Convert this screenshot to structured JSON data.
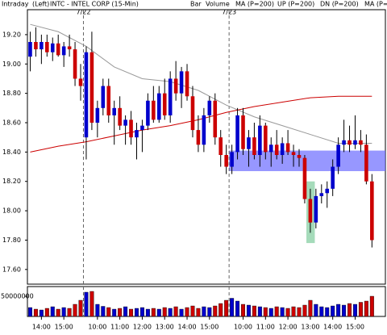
{
  "chart_data": {
    "type": "candlestick",
    "header": [
      {
        "text": "Intraday",
        "color": "#000000"
      },
      {
        "text": "(Left)",
        "color": "#000000"
      },
      {
        "text": "INTC - INTEL CORP (15-Min)",
        "color": "#000000"
      },
      {
        "text": "Bar",
        "color": "#000000"
      },
      {
        "text": "Volume",
        "color": "#00aa00"
      },
      {
        "text": "MA (P=200)",
        "color": "#cc0000"
      },
      {
        "text": "UP (P=200)",
        "color": "#00aa00"
      },
      {
        "text": "DN (P=200)",
        "color": "#0000cc"
      },
      {
        "text": "MA (P=5",
        "color": "#999999"
      }
    ],
    "x": [
      0,
      1,
      2,
      3,
      4,
      5,
      6,
      7,
      8,
      9,
      10,
      11,
      12,
      13,
      14,
      15,
      16,
      17,
      18,
      19,
      20,
      21,
      22,
      23,
      24,
      25,
      26,
      27,
      28,
      29,
      30,
      31,
      32,
      33,
      34,
      35,
      36,
      37,
      38,
      39,
      40,
      41,
      42,
      43,
      44,
      45,
      46,
      47,
      48,
      49,
      50,
      51,
      52,
      53,
      54,
      55,
      56,
      57,
      58,
      59,
      60,
      61
    ],
    "open": [
      19.05,
      19.15,
      19.1,
      19.15,
      19.08,
      19.14,
      19.06,
      19.12,
      19.1,
      18.9,
      18.5,
      19.08,
      18.6,
      18.7,
      18.85,
      18.65,
      18.7,
      18.58,
      18.62,
      18.5,
      18.55,
      18.58,
      18.75,
      18.62,
      18.8,
      18.65,
      18.9,
      18.8,
      18.95,
      18.78,
      18.55,
      18.45,
      18.65,
      18.75,
      18.5,
      18.38,
      18.3,
      18.4,
      18.65,
      18.42,
      18.5,
      18.38,
      18.58,
      18.4,
      18.45,
      18.38,
      18.46,
      18.4,
      18.38,
      18.36,
      18.08,
      17.92,
      18.1,
      18.12,
      18.15,
      18.3,
      18.45,
      18.48,
      18.45,
      18.48,
      18.45,
      18.2
    ],
    "high": [
      19.22,
      19.25,
      19.2,
      19.2,
      19.18,
      19.2,
      19.15,
      19.2,
      19.15,
      19.0,
      19.12,
      19.22,
      18.75,
      18.9,
      18.9,
      18.75,
      18.78,
      18.65,
      18.68,
      18.6,
      18.62,
      18.8,
      18.85,
      18.85,
      18.9,
      18.95,
      19.02,
      18.98,
      19.0,
      18.85,
      18.65,
      18.7,
      18.78,
      18.8,
      18.55,
      18.45,
      18.45,
      18.7,
      18.7,
      18.55,
      18.6,
      18.65,
      18.6,
      18.5,
      18.55,
      18.5,
      18.55,
      18.45,
      18.42,
      18.38,
      18.15,
      18.15,
      18.18,
      18.2,
      18.35,
      18.5,
      18.62,
      18.58,
      18.65,
      18.55,
      18.52,
      18.25
    ],
    "low": [
      18.95,
      19.05,
      19.0,
      19.05,
      19.02,
      19.05,
      18.98,
      19.05,
      18.85,
      18.75,
      18.35,
      18.55,
      18.5,
      18.65,
      18.6,
      18.45,
      18.55,
      18.45,
      18.45,
      18.35,
      18.4,
      18.55,
      18.6,
      18.6,
      18.62,
      18.6,
      18.75,
      18.7,
      18.75,
      18.5,
      18.4,
      18.4,
      18.6,
      18.45,
      18.3,
      18.25,
      18.25,
      18.35,
      18.38,
      18.3,
      18.35,
      18.3,
      18.35,
      18.3,
      18.35,
      18.32,
      18.38,
      18.3,
      18.3,
      18.05,
      17.85,
      17.88,
      18.05,
      18.02,
      18.1,
      18.25,
      18.4,
      18.4,
      18.42,
      18.4,
      18.18,
      17.75
    ],
    "close": [
      19.15,
      19.1,
      19.15,
      19.08,
      19.14,
      19.06,
      19.12,
      19.1,
      18.9,
      18.85,
      19.08,
      18.6,
      18.7,
      18.85,
      18.65,
      18.7,
      18.58,
      18.62,
      18.5,
      18.55,
      18.58,
      18.75,
      18.62,
      18.8,
      18.65,
      18.9,
      18.8,
      18.95,
      18.78,
      18.55,
      18.45,
      18.65,
      18.75,
      18.5,
      18.38,
      18.3,
      18.4,
      18.65,
      18.42,
      18.5,
      18.38,
      18.58,
      18.4,
      18.45,
      18.38,
      18.46,
      18.4,
      18.38,
      18.36,
      18.08,
      17.92,
      18.1,
      18.12,
      18.15,
      18.3,
      18.45,
      18.48,
      18.45,
      18.48,
      18.45,
      18.2,
      17.8
    ],
    "up_color": "#0000cc",
    "down_color": "#cc0000",
    "lines": [
      {
        "color": "#999999",
        "x": [
          0,
          5,
          10,
          15,
          20,
          25,
          30,
          35,
          40,
          45,
          50,
          55,
          61
        ],
        "values": [
          19.27,
          19.22,
          19.12,
          18.98,
          18.9,
          18.88,
          18.82,
          18.72,
          18.64,
          18.58,
          18.52,
          18.46,
          18.46
        ]
      },
      {
        "color": "#cc0000",
        "x": [
          0,
          5,
          10,
          15,
          20,
          25,
          30,
          35,
          40,
          45,
          50,
          55,
          61
        ],
        "values": [
          18.4,
          18.44,
          18.47,
          18.51,
          18.55,
          18.58,
          18.62,
          18.67,
          18.71,
          18.74,
          18.77,
          18.78,
          18.78
        ]
      }
    ],
    "highlights": [
      {
        "xlim": [
          35.5,
          63.4
        ],
        "ylim": [
          18.27,
          18.41
        ],
        "color": "#6b6bff"
      },
      {
        "xlim": [
          49.3,
          50.8
        ],
        "ylim": [
          17.78,
          18.2
        ],
        "color": "#7fcc9c"
      }
    ],
    "xlim": [
      -0.5,
      63.4
    ],
    "xticks": [
      {
        "value": 2,
        "label": "14:00"
      },
      {
        "value": 6,
        "label": "15:00"
      },
      {
        "value": 12,
        "label": "10:00"
      },
      {
        "value": 16,
        "label": "11:00"
      },
      {
        "value": 20,
        "label": "12:00"
      },
      {
        "value": 24,
        "label": "13:00"
      },
      {
        "value": 28,
        "label": "14:00"
      },
      {
        "value": 32,
        "label": "15:00"
      },
      {
        "value": 38,
        "label": "10:00"
      },
      {
        "value": 42,
        "label": "11:00"
      },
      {
        "value": 46,
        "label": "12:00"
      },
      {
        "value": 50,
        "label": "13:00"
      },
      {
        "value": 54,
        "label": "14:00"
      },
      {
        "value": 58,
        "label": "15:00"
      }
    ],
    "day_markers": [
      {
        "value": 9.5,
        "label": "7/22"
      },
      {
        "value": 35.5,
        "label": "7/23"
      }
    ],
    "ylim": [
      17.5,
      19.37
    ],
    "yticks": [
      {
        "value": 19.2,
        "label": "19.20"
      },
      {
        "value": 19.0,
        "label": "19.00"
      },
      {
        "value": 18.8,
        "label": "18.80"
      },
      {
        "value": 18.6,
        "label": "18.60"
      },
      {
        "value": 18.4,
        "label": "18.40"
      },
      {
        "value": 18.2,
        "label": "18.20"
      },
      {
        "value": 18.0,
        "label": "18.00"
      },
      {
        "value": 17.8,
        "label": "17.80"
      },
      {
        "value": 17.6,
        "label": "17.60"
      }
    ],
    "volume": [
      22000000,
      18000000,
      16000000,
      20000000,
      24000000,
      18000000,
      22000000,
      20000000,
      30000000,
      40000000,
      60000000,
      62000000,
      30000000,
      25000000,
      22000000,
      18000000,
      20000000,
      24000000,
      18000000,
      20000000,
      22000000,
      18000000,
      20000000,
      18000000,
      22000000,
      20000000,
      24000000,
      18000000,
      22000000,
      26000000,
      20000000,
      24000000,
      22000000,
      26000000,
      32000000,
      40000000,
      45000000,
      38000000,
      30000000,
      28000000,
      26000000,
      24000000,
      22000000,
      20000000,
      24000000,
      22000000,
      20000000,
      24000000,
      22000000,
      28000000,
      40000000,
      30000000,
      24000000,
      22000000,
      26000000,
      30000000,
      28000000,
      32000000,
      30000000,
      35000000,
      38000000,
      50000000
    ],
    "vlim": [
      0,
      74000000
    ],
    "vticks": [
      50000000
    ]
  }
}
